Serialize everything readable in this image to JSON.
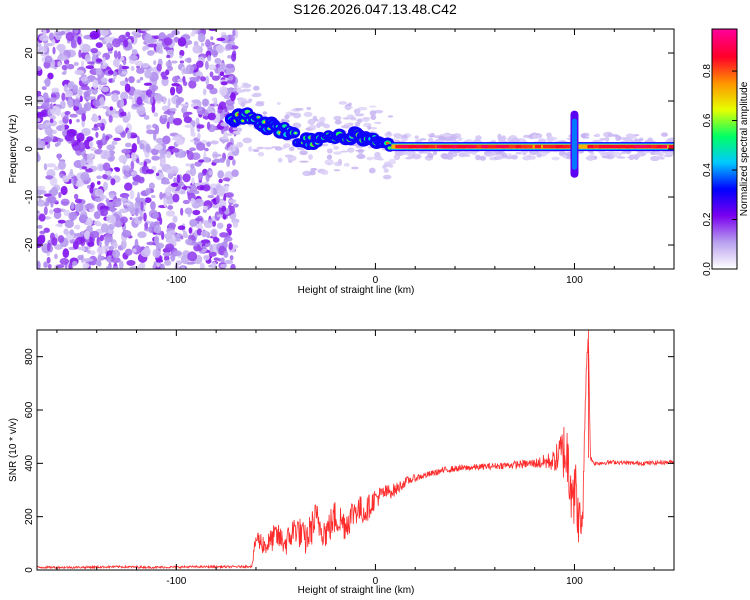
{
  "figure_title": "S126.2026.047.13.48.C42",
  "chart_data": [
    {
      "id": "spectrogram",
      "type": "heatmap",
      "xlabel": "Height of straight line (km)",
      "ylabel": "Frequency (Hz)",
      "xlim": [
        -170,
        150
      ],
      "ylim": [
        -25,
        25
      ],
      "x_ticks": [
        -100,
        0,
        100
      ],
      "y_ticks": [
        -20,
        -10,
        0,
        10,
        20
      ],
      "colorbar": {
        "label": "Normalized spectral amplitude",
        "range": [
          0.0,
          0.97
        ],
        "ticks": [
          0.0,
          0.2,
          0.4,
          0.6,
          0.8
        ],
        "tick_labels": [
          "0.0",
          "0.2",
          "0.4",
          "0.6",
          "0.8"
        ],
        "colors": [
          "#ffffff",
          "#b8a0ee",
          "#7a00ee",
          "#0000ff",
          "#00c8ff",
          "#00ff64",
          "#e6ff00",
          "#ff9600",
          "#ff0028",
          "#ff0096"
        ]
      },
      "noise_region_x": [
        -170,
        -70
      ],
      "tone_track": [
        {
          "x": -72,
          "y": 6
        },
        {
          "x": -65,
          "y": 7
        },
        {
          "x": -55,
          "y": 5
        },
        {
          "x": -45,
          "y": 4
        },
        {
          "x": -38,
          "y": 2
        },
        {
          "x": -30,
          "y": 1.5
        },
        {
          "x": -20,
          "y": 2.5
        },
        {
          "x": -10,
          "y": 3
        },
        {
          "x": 0,
          "y": 2
        },
        {
          "x": 8,
          "y": 0.5
        },
        {
          "x": 100,
          "y": 0.5
        },
        {
          "x": 150,
          "y": 0.5
        }
      ],
      "spike_at_x": 100,
      "spike_y_range": [
        -6,
        8
      ]
    },
    {
      "id": "snr",
      "type": "line",
      "xlabel": "Height of straight line (km)",
      "ylabel": "SNR (10 * v/v)",
      "xlim": [
        -170,
        150
      ],
      "ylim": [
        0,
        900
      ],
      "x_ticks": [
        -100,
        0,
        100
      ],
      "y_ticks": [
        0,
        200,
        400,
        600,
        800
      ],
      "color": "#ff2a2a",
      "series": [
        {
          "name": "SNR",
          "x": [
            -170,
            -150,
            -130,
            -110,
            -90,
            -70,
            -62,
            -60,
            -55,
            -50,
            -45,
            -40,
            -35,
            -30,
            -25,
            -20,
            -15,
            -10,
            -5,
            0,
            5,
            10,
            15,
            20,
            25,
            30,
            35,
            40,
            50,
            60,
            70,
            80,
            90,
            95,
            98,
            100,
            102,
            104,
            105,
            106,
            107,
            108,
            110,
            120,
            130,
            140,
            150
          ],
          "values": [
            10,
            10,
            12,
            10,
            12,
            12,
            14,
            120,
            90,
            130,
            100,
            160,
            110,
            190,
            140,
            200,
            170,
            230,
            220,
            270,
            290,
            300,
            330,
            345,
            355,
            365,
            375,
            380,
            385,
            390,
            395,
            400,
            410,
            450,
            380,
            300,
            200,
            140,
            500,
            760,
            880,
            420,
            400,
            405,
            400,
            402,
            405
          ],
          "amplitude": [
            4,
            4,
            4,
            4,
            4,
            4,
            4,
            40,
            40,
            50,
            50,
            60,
            60,
            70,
            60,
            70,
            60,
            60,
            50,
            40,
            30,
            25,
            18,
            14,
            12,
            12,
            12,
            12,
            12,
            12,
            14,
            18,
            40,
            120,
            180,
            160,
            100,
            60,
            30,
            20,
            10,
            10,
            8,
            8,
            8,
            8,
            8
          ]
        }
      ]
    }
  ]
}
